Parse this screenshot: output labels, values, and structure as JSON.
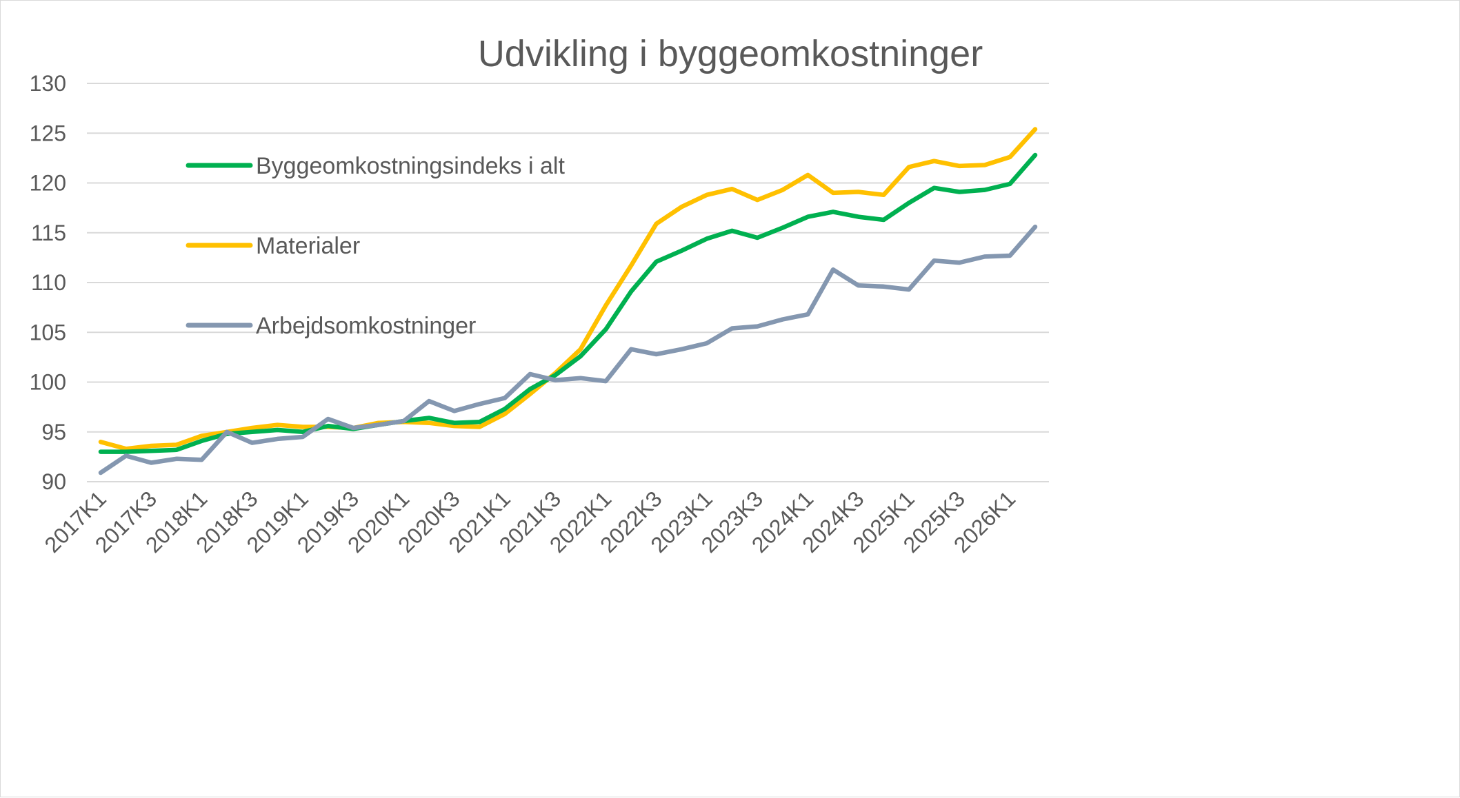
{
  "chart_data": {
    "type": "line",
    "title": "Udvikling i byggeomkostninger",
    "xlabel": "",
    "ylabel": "",
    "ylim": [
      90,
      130
    ],
    "yticks": [
      "90",
      "95",
      "100",
      "105",
      "110",
      "115",
      "120",
      "125",
      "130"
    ],
    "grid": true,
    "legend_position": "top-left (inside plot)",
    "categories": [
      "2017K1",
      "2017K2",
      "2017K3",
      "2017K4",
      "2018K1",
      "2018K2",
      "2018K3",
      "2018K4",
      "2019K1",
      "2019K2",
      "2019K3",
      "2019K4",
      "2020K1",
      "2020K2",
      "2020K3",
      "2020K4",
      "2021K1",
      "2021K2",
      "2021K3",
      "2021K4",
      "2022K1",
      "2022K2",
      "2022K3",
      "2022K4",
      "2023K1",
      "2023K2",
      "2023K3",
      "2023K4",
      "2024K1",
      "2024K2",
      "2024K3",
      "2024K4",
      "2025K1",
      "2025K2",
      "2025K3",
      "2025K4",
      "2026K1",
      "2026K2"
    ],
    "tick_labels": [
      "2017K1",
      "2017K3",
      "2018K1",
      "2018K3",
      "2019K1",
      "2019K3",
      "2020K1",
      "2020K3",
      "2021K1",
      "2021K3",
      "2022K1",
      "2022K3",
      "2023K1",
      "2023K3",
      "2024K1",
      "2024K3",
      "2025K1",
      "2025K3",
      "2026K1"
    ],
    "series": [
      {
        "name": "Byggeomkostningsindeks i alt",
        "color": "#00b050",
        "values": [
          93.0,
          93.0,
          93.1,
          93.2,
          94.1,
          94.8,
          95.0,
          95.2,
          95.0,
          95.6,
          95.3,
          95.7,
          96.1,
          96.4,
          95.9,
          96.0,
          97.3,
          99.3,
          100.7,
          102.6,
          105.3,
          109.1,
          112.1,
          113.2,
          114.4,
          115.2,
          114.5,
          115.5,
          116.6,
          117.1,
          116.6,
          116.3,
          118.0,
          119.5,
          119.1,
          119.3,
          119.9,
          122.8
        ]
      },
      {
        "name": "Materialer",
        "color": "#ffc000",
        "values": [
          94.0,
          93.3,
          93.6,
          93.7,
          94.6,
          95.0,
          95.4,
          95.7,
          95.5,
          95.5,
          95.4,
          95.9,
          96.0,
          95.9,
          95.6,
          95.5,
          96.8,
          98.8,
          100.9,
          103.3,
          107.7,
          111.7,
          115.9,
          117.6,
          118.8,
          119.4,
          118.3,
          119.3,
          120.8,
          119.0,
          119.1,
          118.8,
          121.6,
          122.2,
          121.7,
          121.8,
          122.6,
          125.4
        ]
      },
      {
        "name": "Arbejdsomkostninger",
        "color": "#8497b0",
        "values": [
          90.9,
          92.6,
          91.9,
          92.3,
          92.2,
          95.0,
          93.9,
          94.3,
          94.5,
          96.3,
          95.4,
          95.7,
          96.1,
          98.1,
          97.1,
          97.8,
          98.4,
          100.8,
          100.2,
          100.4,
          100.1,
          103.3,
          102.8,
          103.3,
          103.9,
          105.4,
          105.6,
          106.3,
          106.8,
          111.3,
          109.7,
          109.6,
          109.3,
          112.2,
          112.0,
          112.6,
          112.7,
          115.6
        ]
      }
    ]
  }
}
